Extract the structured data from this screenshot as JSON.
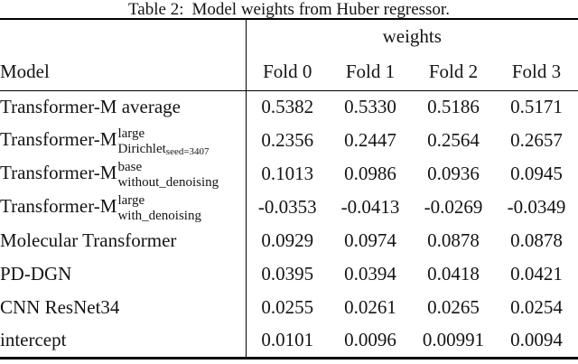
{
  "caption": {
    "label": "Table 2:",
    "text": "Model weights from Huber regressor."
  },
  "table": {
    "group_header": "weights",
    "columns": [
      "Model",
      "Fold 0",
      "Fold 1",
      "Fold 2",
      "Fold 3"
    ],
    "rows": [
      {
        "model": {
          "base": "Transformer-M average"
        },
        "values": [
          "0.5382",
          "0.5330",
          "0.5186",
          "0.5171"
        ]
      },
      {
        "model": {
          "base": "Transformer-M",
          "sup": "large",
          "sub": "Dirichlet",
          "subsub": "seed=3407"
        },
        "values": [
          "0.2356",
          "0.2447",
          "0.2564",
          "0.2657"
        ]
      },
      {
        "model": {
          "base": "Transformer-M",
          "sup": "base",
          "sub": "without_denoising"
        },
        "values": [
          "0.1013",
          "0.0986",
          "0.0936",
          "0.0945"
        ]
      },
      {
        "model": {
          "base": "Transformer-M",
          "sup": "large",
          "sub": "with_denoising"
        },
        "values": [
          "-0.0353",
          "-0.0413",
          "-0.0269",
          "-0.0349"
        ]
      },
      {
        "model": {
          "base": "Molecular Transformer"
        },
        "values": [
          "0.0929",
          "0.0974",
          "0.0878",
          "0.0878"
        ]
      },
      {
        "model": {
          "base": "PD-DGN"
        },
        "values": [
          "0.0395",
          "0.0394",
          "0.0418",
          "0.0421"
        ]
      },
      {
        "model": {
          "base": "CNN ResNet34"
        },
        "values": [
          "0.0255",
          "0.0261",
          "0.0265",
          "0.0254"
        ]
      },
      {
        "model": {
          "base": "intercept"
        },
        "values": [
          "0.0101",
          "0.0096",
          "0.00991",
          "0.0094"
        ]
      }
    ]
  },
  "colors": {
    "text": "#141414",
    "rule": "#000000",
    "background": "#ffffff"
  }
}
